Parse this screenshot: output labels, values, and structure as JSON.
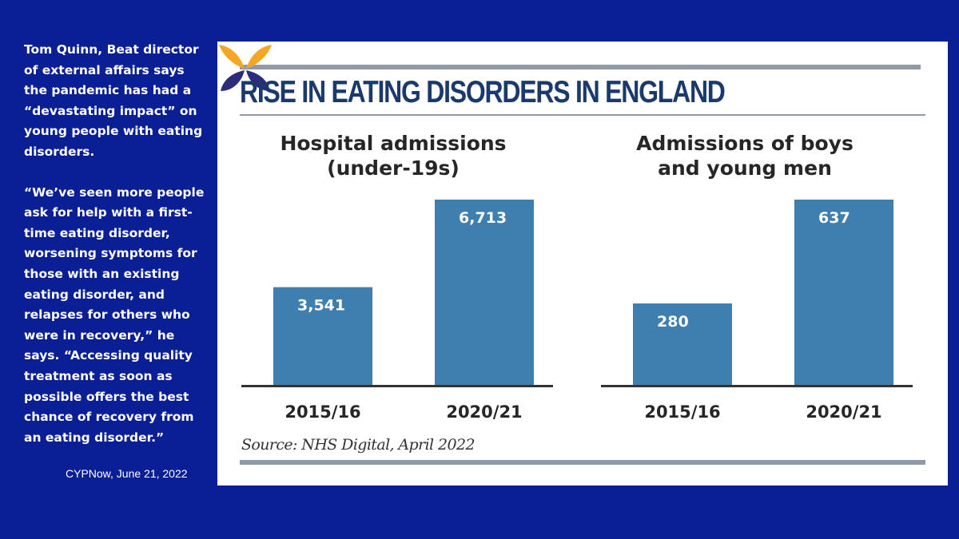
{
  "quote": {
    "intro": "Tom Quinn, Beat director of external affairs says the pandemic has had a “devastating impact” on young people with eating disorders.",
    "body": "“We’ve seen more people ask for help with a first-time eating disorder, worsening symptoms for those with an existing eating disorder, and relapses for others who were in recovery,” he says. “Accessing quality treatment as soon as possible offers the best chance of recovery from an eating disorder.”",
    "citation": "CYPNow, June 21, 2022"
  },
  "infographic": {
    "headline": "RISE IN EATING DISORDERS IN ENGLAND",
    "source": "Source: NHS Digital, April 2022"
  },
  "logo": {
    "icon": "butterfly-logo-icon",
    "colors": {
      "top": "#f5a623",
      "bottom": "#2b2d7c"
    }
  },
  "colors": {
    "background": "#0a1f94",
    "bar": "#3f7fb0",
    "rule": "#8f9ba7",
    "headline": "#1b3a6b"
  },
  "chart_data": [
    {
      "type": "bar",
      "title": "Hospital admissions",
      "subtitle": "(under-19s)",
      "categories": [
        "2015/16",
        "2020/21"
      ],
      "values": [
        3541,
        6713
      ],
      "labels": [
        "3,541",
        "6,713"
      ],
      "ylim": [
        0,
        6713
      ]
    },
    {
      "type": "bar",
      "title": "Admissions of boys",
      "subtitle": "and young men",
      "categories": [
        "2015/16",
        "2020/21"
      ],
      "values": [
        280,
        637
      ],
      "labels": [
        "280",
        "637"
      ],
      "ylim": [
        0,
        637
      ]
    }
  ]
}
